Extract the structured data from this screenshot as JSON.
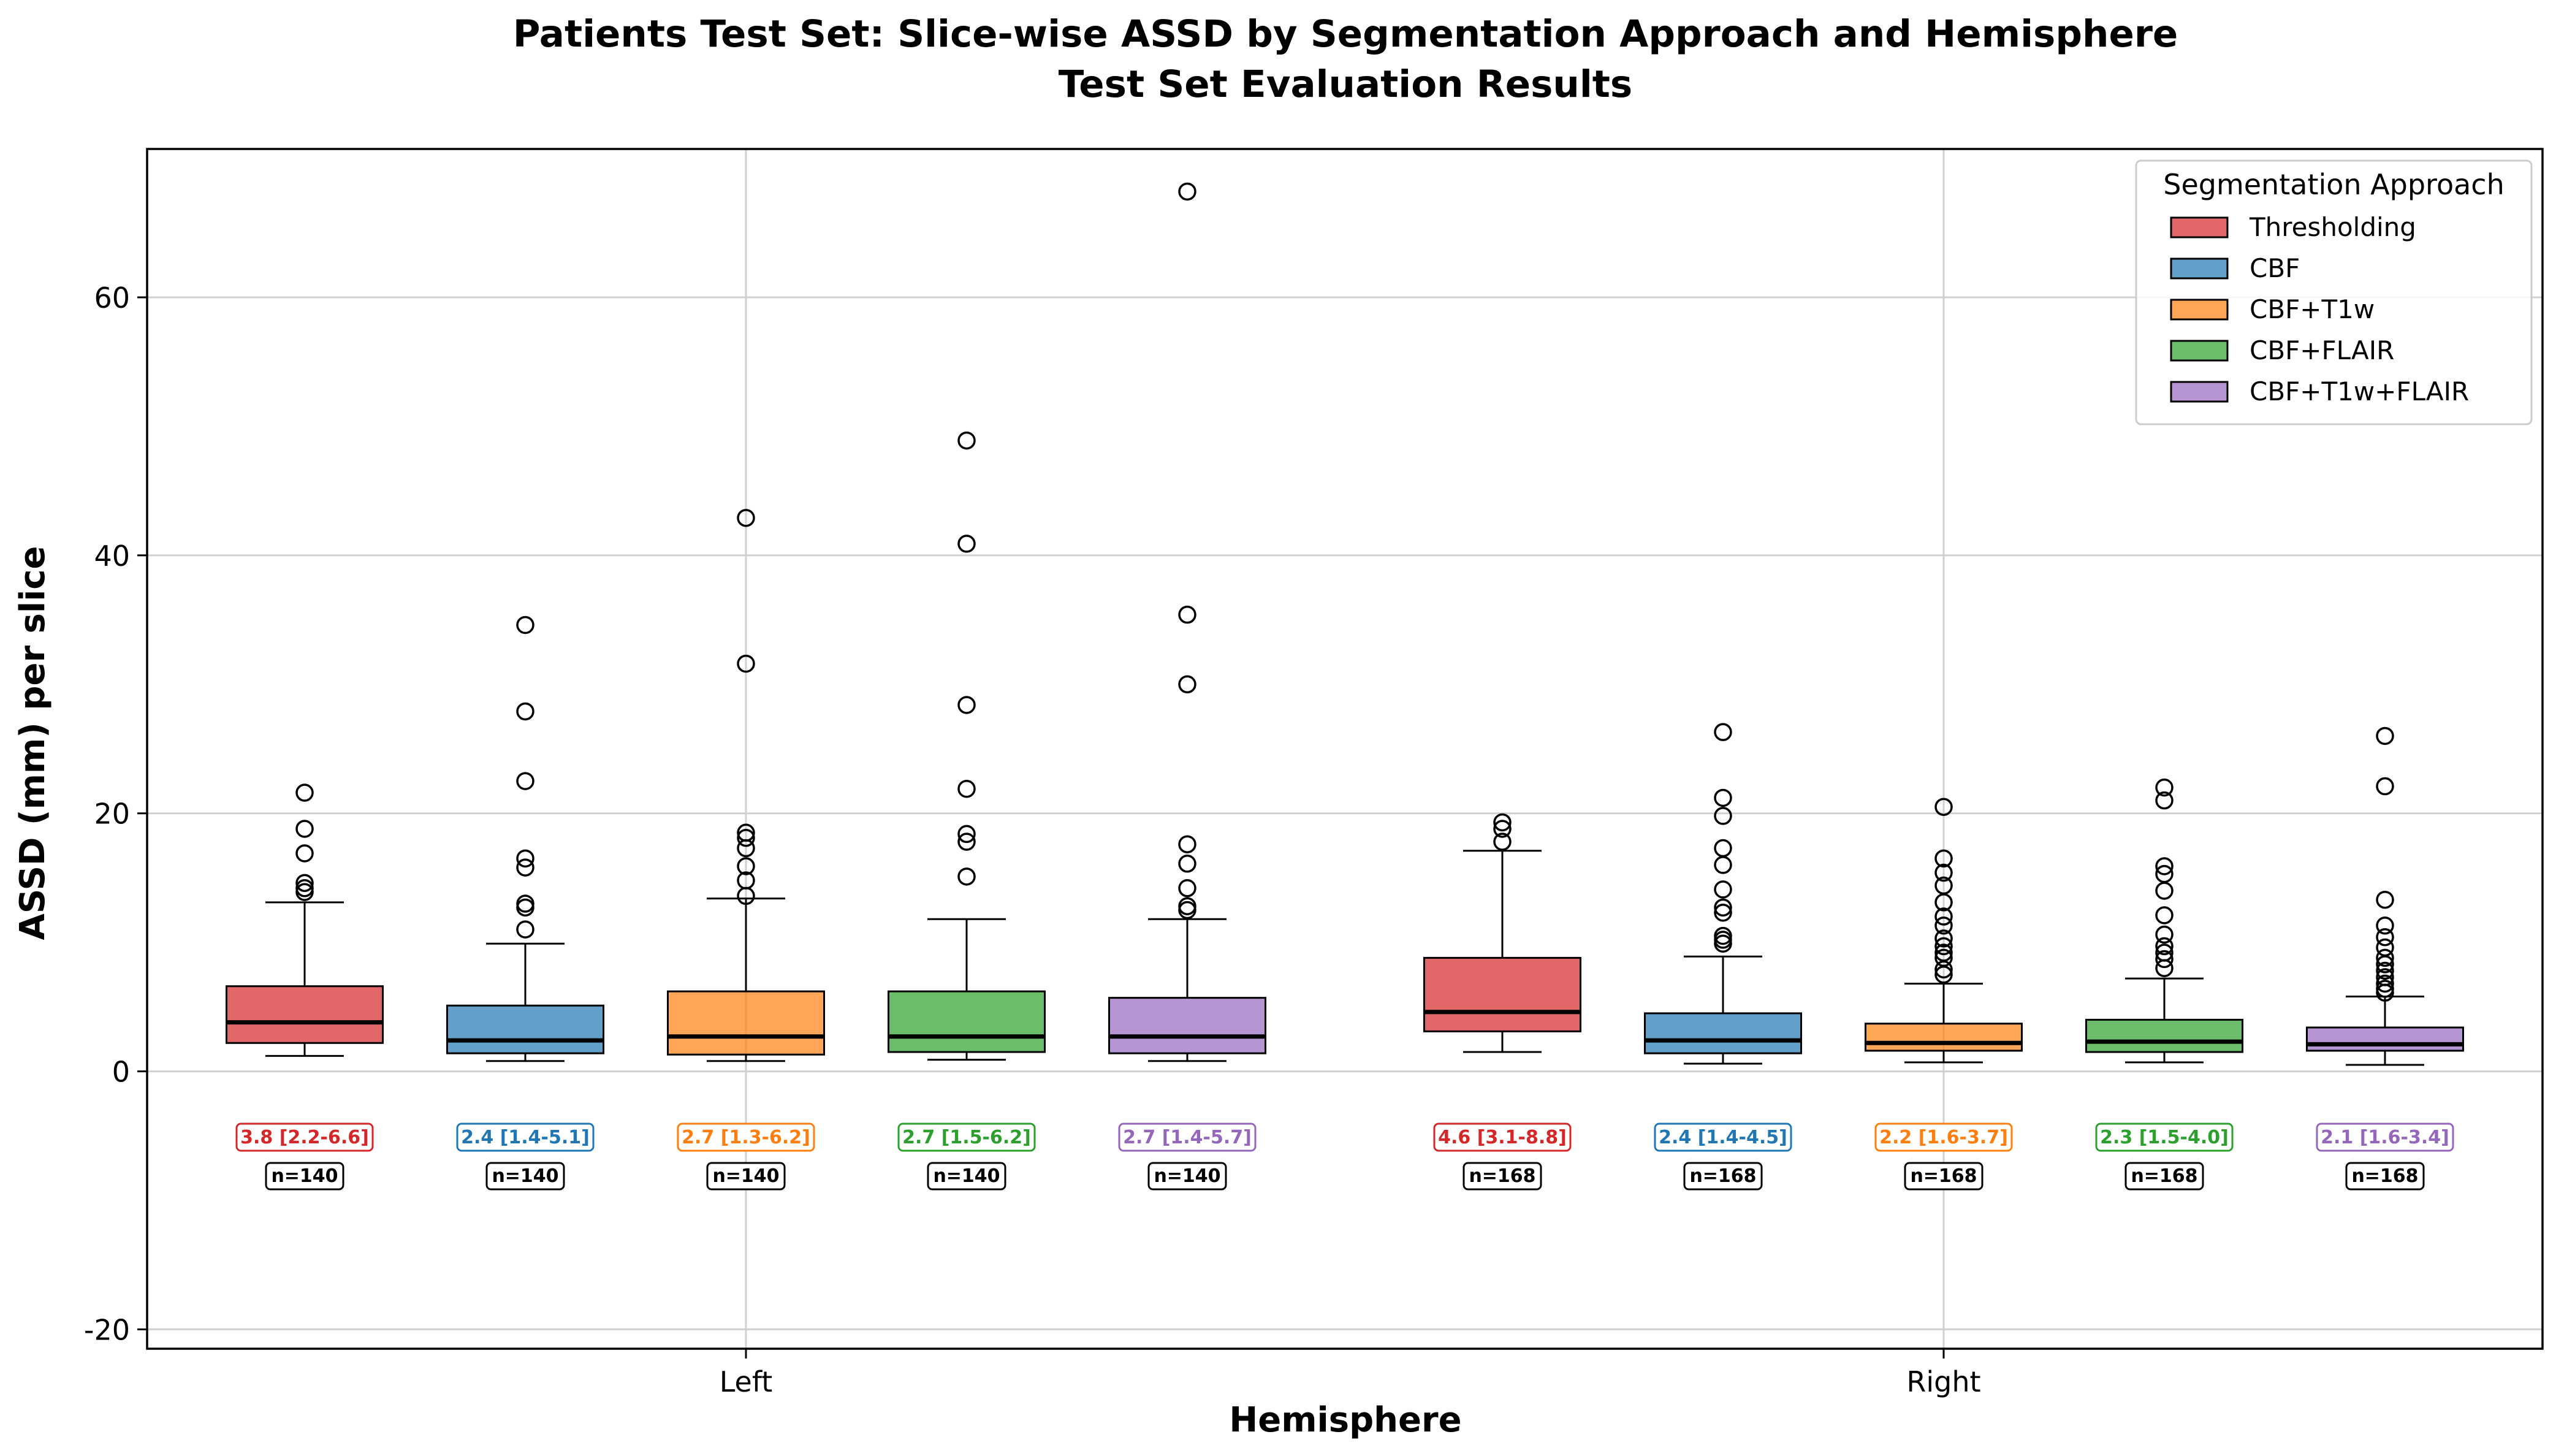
{
  "chart_data": {
    "type": "box",
    "title": "Patients Test Set: Slice-wise ASSD by Segmentation Approach and Hemisphere",
    "subtitle": "Test Set Evaluation Results",
    "xlabel": "Hemisphere",
    "ylabel": "ASSD (mm) per slice",
    "ylim": [
      -21.5,
      71.5
    ],
    "yticks": [
      -20,
      0,
      20,
      40,
      60
    ],
    "grid": true,
    "legend": {
      "title": "Segmentation Approach",
      "placement": "top-right"
    },
    "groups": [
      "Left",
      "Right"
    ],
    "series": [
      {
        "name": "Thresholding",
        "color": "#d62728",
        "boxes": [
          {
            "group": "Left",
            "whisker_low": 1.2,
            "q1": 2.2,
            "median": 3.8,
            "q3": 6.6,
            "whisker_high": 13.1,
            "outliers": [
              13.9,
              14.2,
              14.6,
              16.9,
              18.8,
              21.6
            ],
            "annotation": "3.8 [2.2-6.6]",
            "n": "n=140"
          },
          {
            "group": "Right",
            "whisker_low": 1.5,
            "q1": 3.1,
            "median": 4.6,
            "q3": 8.8,
            "whisker_high": 17.1,
            "outliers": [
              17.8,
              18.8,
              19.3
            ],
            "annotation": "4.6 [3.1-8.8]",
            "n": "n=168"
          }
        ]
      },
      {
        "name": "CBF",
        "color": "#1f77b4",
        "boxes": [
          {
            "group": "Left",
            "whisker_low": 0.8,
            "q1": 1.4,
            "median": 2.4,
            "q3": 5.1,
            "whisker_high": 9.9,
            "outliers": [
              11.0,
              12.7,
              13.0,
              15.8,
              16.5,
              22.5,
              27.9,
              34.6
            ],
            "annotation": "2.4 [1.4-5.1]",
            "n": "n=140"
          },
          {
            "group": "Right",
            "whisker_low": 0.6,
            "q1": 1.4,
            "median": 2.4,
            "q3": 4.5,
            "whisker_high": 8.9,
            "outliers": [
              9.9,
              10.2,
              10.5,
              12.3,
              12.7,
              14.1,
              16.0,
              17.3,
              19.8,
              21.2,
              26.3
            ],
            "annotation": "2.4 [1.4-4.5]",
            "n": "n=168"
          }
        ]
      },
      {
        "name": "CBF+T1w",
        "color": "#ff7f0e",
        "boxes": [
          {
            "group": "Left",
            "whisker_low": 0.8,
            "q1": 1.3,
            "median": 2.7,
            "q3": 6.2,
            "whisker_high": 13.4,
            "outliers": [
              13.6,
              14.8,
              15.9,
              17.3,
              18.1,
              18.5,
              31.6,
              42.9
            ],
            "annotation": "2.7 [1.3-6.2]",
            "n": "n=140"
          },
          {
            "group": "Right",
            "whisker_low": 0.7,
            "q1": 1.6,
            "median": 2.2,
            "q3": 3.7,
            "whisker_high": 6.8,
            "outliers": [
              7.5,
              7.9,
              8.8,
              9.2,
              9.7,
              10.3,
              11.3,
              12.0,
              13.1,
              14.4,
              15.4,
              16.5,
              20.5
            ],
            "annotation": "2.2 [1.6-3.7]",
            "n": "n=168"
          }
        ]
      },
      {
        "name": "CBF+FLAIR",
        "color": "#2ca02c",
        "boxes": [
          {
            "group": "Left",
            "whisker_low": 0.9,
            "q1": 1.5,
            "median": 2.7,
            "q3": 6.2,
            "whisker_high": 11.8,
            "outliers": [
              15.1,
              17.8,
              18.4,
              21.9,
              28.4,
              40.9,
              48.9
            ],
            "annotation": "2.7 [1.5-6.2]",
            "n": "n=140"
          },
          {
            "group": "Right",
            "whisker_low": 0.7,
            "q1": 1.5,
            "median": 2.3,
            "q3": 4.0,
            "whisker_high": 7.2,
            "outliers": [
              8.0,
              8.7,
              9.2,
              9.7,
              10.6,
              12.1,
              14.0,
              15.3,
              15.9,
              21.0,
              22.0
            ],
            "annotation": "2.3 [1.5-4.0]",
            "n": "n=168"
          }
        ]
      },
      {
        "name": "CBF+T1w+FLAIR",
        "color": "#9467bd",
        "boxes": [
          {
            "group": "Left",
            "whisker_low": 0.8,
            "q1": 1.4,
            "median": 2.7,
            "q3": 5.7,
            "whisker_high": 11.8,
            "outliers": [
              12.5,
              12.8,
              14.2,
              16.1,
              17.6,
              30.0,
              35.4,
              68.2
            ],
            "annotation": "2.7 [1.4-5.7]",
            "n": "n=140"
          },
          {
            "group": "Right",
            "whisker_low": 0.5,
            "q1": 1.6,
            "median": 2.1,
            "q3": 3.4,
            "whisker_high": 5.8,
            "outliers": [
              6.1,
              6.4,
              6.8,
              7.3,
              7.8,
              8.3,
              8.8,
              9.6,
              10.4,
              11.3,
              13.3,
              22.1,
              26.0
            ],
            "annotation": "2.1 [1.6-3.4]",
            "n": "n=168"
          }
        ]
      }
    ]
  }
}
